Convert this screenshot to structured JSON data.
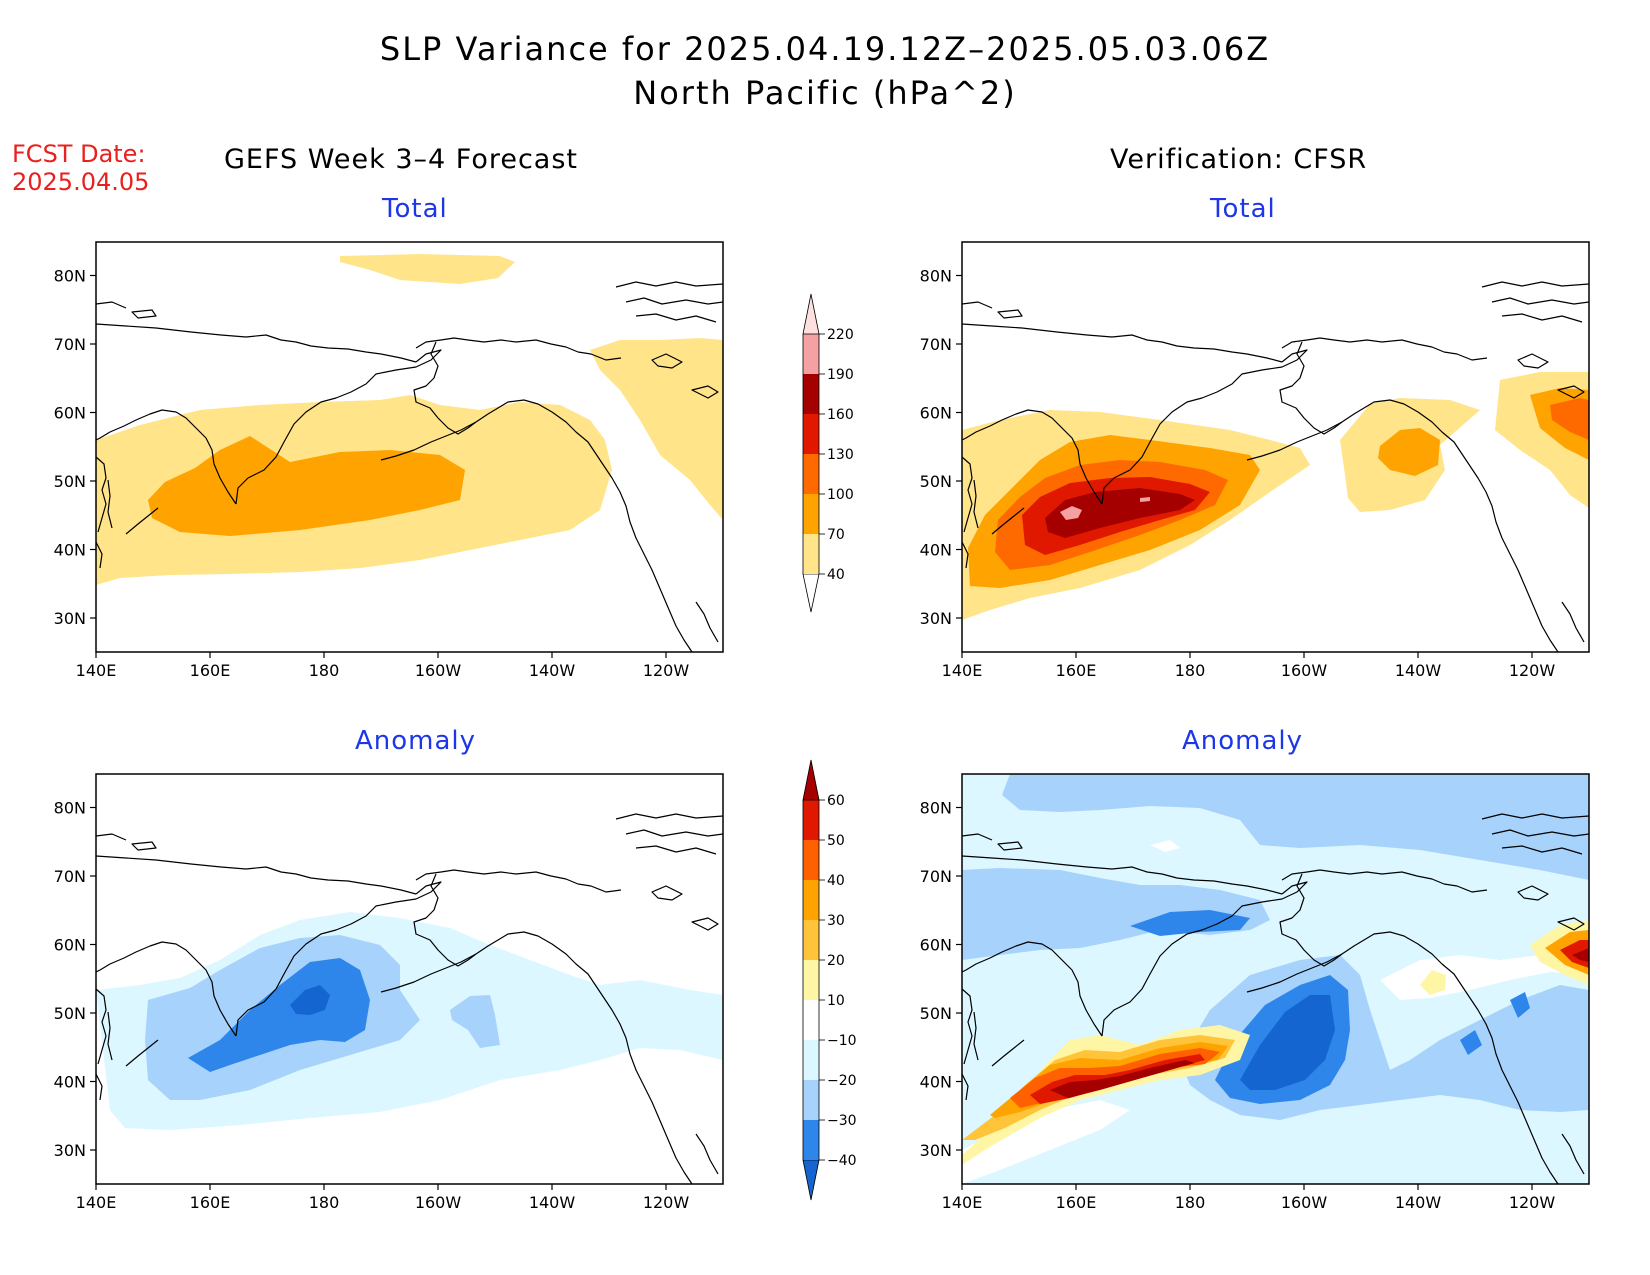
{
  "title": {
    "line1": "SLP Variance for 2025.04.19.12Z–2025.05.03.06Z",
    "line2": "North Pacific (hPa^2)"
  },
  "fcst": {
    "label": "FCST Date:",
    "date": "2025.04.05"
  },
  "left_title": "GEFS Week 3–4 Forecast",
  "right_title": "Verification: CFSR",
  "panels": {
    "total_label": "Total",
    "anomaly_label": "Anomaly"
  },
  "axes": {
    "lat_ticks": [
      "30N",
      "40N",
      "50N",
      "60N",
      "70N",
      "80N"
    ],
    "lon_ticks": [
      "140E",
      "160E",
      "180",
      "160W",
      "140W",
      "120W"
    ]
  },
  "colorbars": {
    "total": {
      "levels": [
        "40",
        "70",
        "100",
        "130",
        "160",
        "190",
        "220"
      ],
      "colors": [
        "#ffe48a",
        "#ffa300",
        "#ff6a00",
        "#e11800",
        "#a50000",
        "#f4a1a3",
        "#fde0e0"
      ]
    },
    "anomaly": {
      "levels": [
        "−40",
        "−30",
        "−20",
        "−10",
        "10",
        "20",
        "30",
        "40",
        "50",
        "60"
      ],
      "colors": [
        "#1565d0",
        "#2f86ea",
        "#a6d2fb",
        "#dcf7ff",
        "#ffffff",
        "#fff6a5",
        "#ffc43a",
        "#ffa300",
        "#ff6000",
        "#e11800",
        "#a50000"
      ]
    }
  },
  "colors": {
    "title_red": "#e8201e",
    "subtitle_blue": "#1d36e8"
  }
}
